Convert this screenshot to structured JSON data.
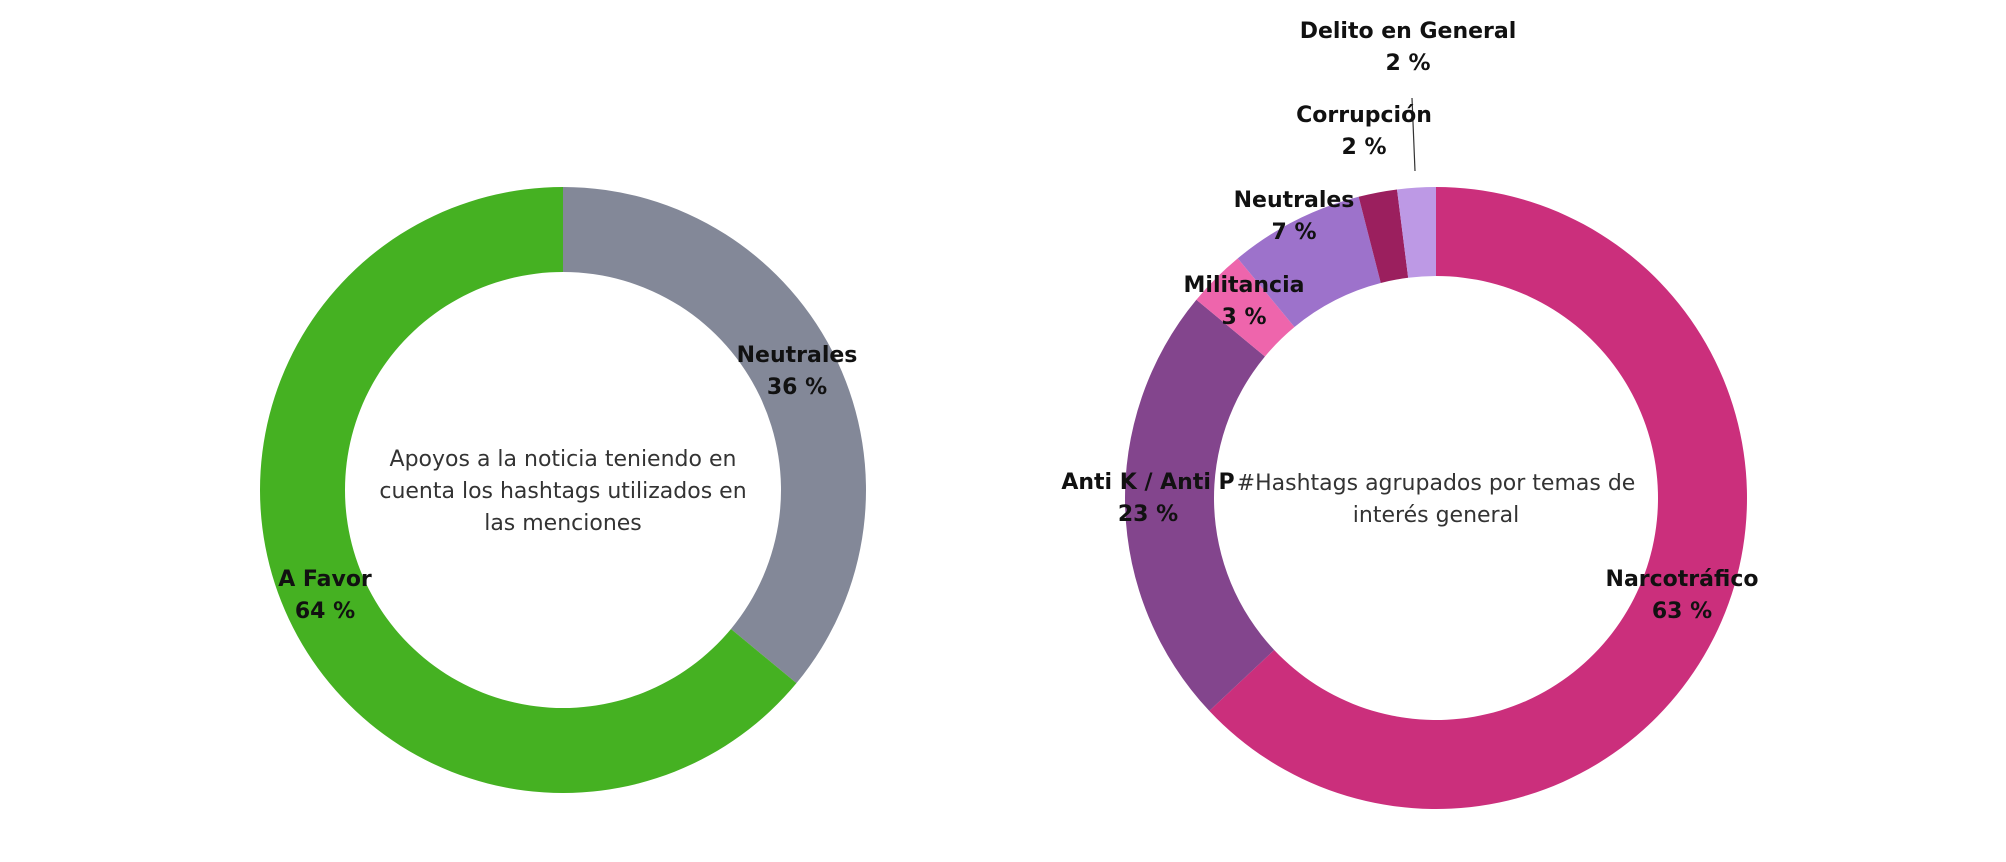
{
  "chart_data": [
    {
      "type": "donut",
      "title": "Apoyos a la noticia teniendo en cuenta los hashtags utilizados en las menciones",
      "title_lines": [
        "Apoyos a la noticia teniendo en",
        "cuenta los hashtags utilizados en",
        "las menciones"
      ],
      "slices": [
        {
          "label": "Neutrales",
          "value": 36,
          "display": "36 %",
          "color": "#838898"
        },
        {
          "label": "A Favor",
          "value": 64,
          "display": "64 %",
          "color": "#45b122"
        }
      ]
    },
    {
      "type": "donut",
      "title": "#Hashtags agrupados por temas de interés general",
      "title_lines": [
        "#Hashtags agrupados por temas de",
        "interés general"
      ],
      "slices": [
        {
          "label": "Narcotráfico",
          "value": 63,
          "display": "63 %",
          "color": "#cb2f7c"
        },
        {
          "label": "Anti K / Anti P",
          "value": 23,
          "display": "23 %",
          "color": "#83458d"
        },
        {
          "label": "Militancia",
          "value": 3,
          "display": "3 %",
          "color": "#ee65ac"
        },
        {
          "label": "Neutrales",
          "value": 7,
          "display": "7 %",
          "color": "#9d72cb"
        },
        {
          "label": "Corrupción",
          "value": 2,
          "display": "2 %",
          "color": "#9b1f5e"
        },
        {
          "label": "Delito en General",
          "value": 2,
          "display": "2 %",
          "color": "#bd99e5"
        }
      ]
    }
  ]
}
